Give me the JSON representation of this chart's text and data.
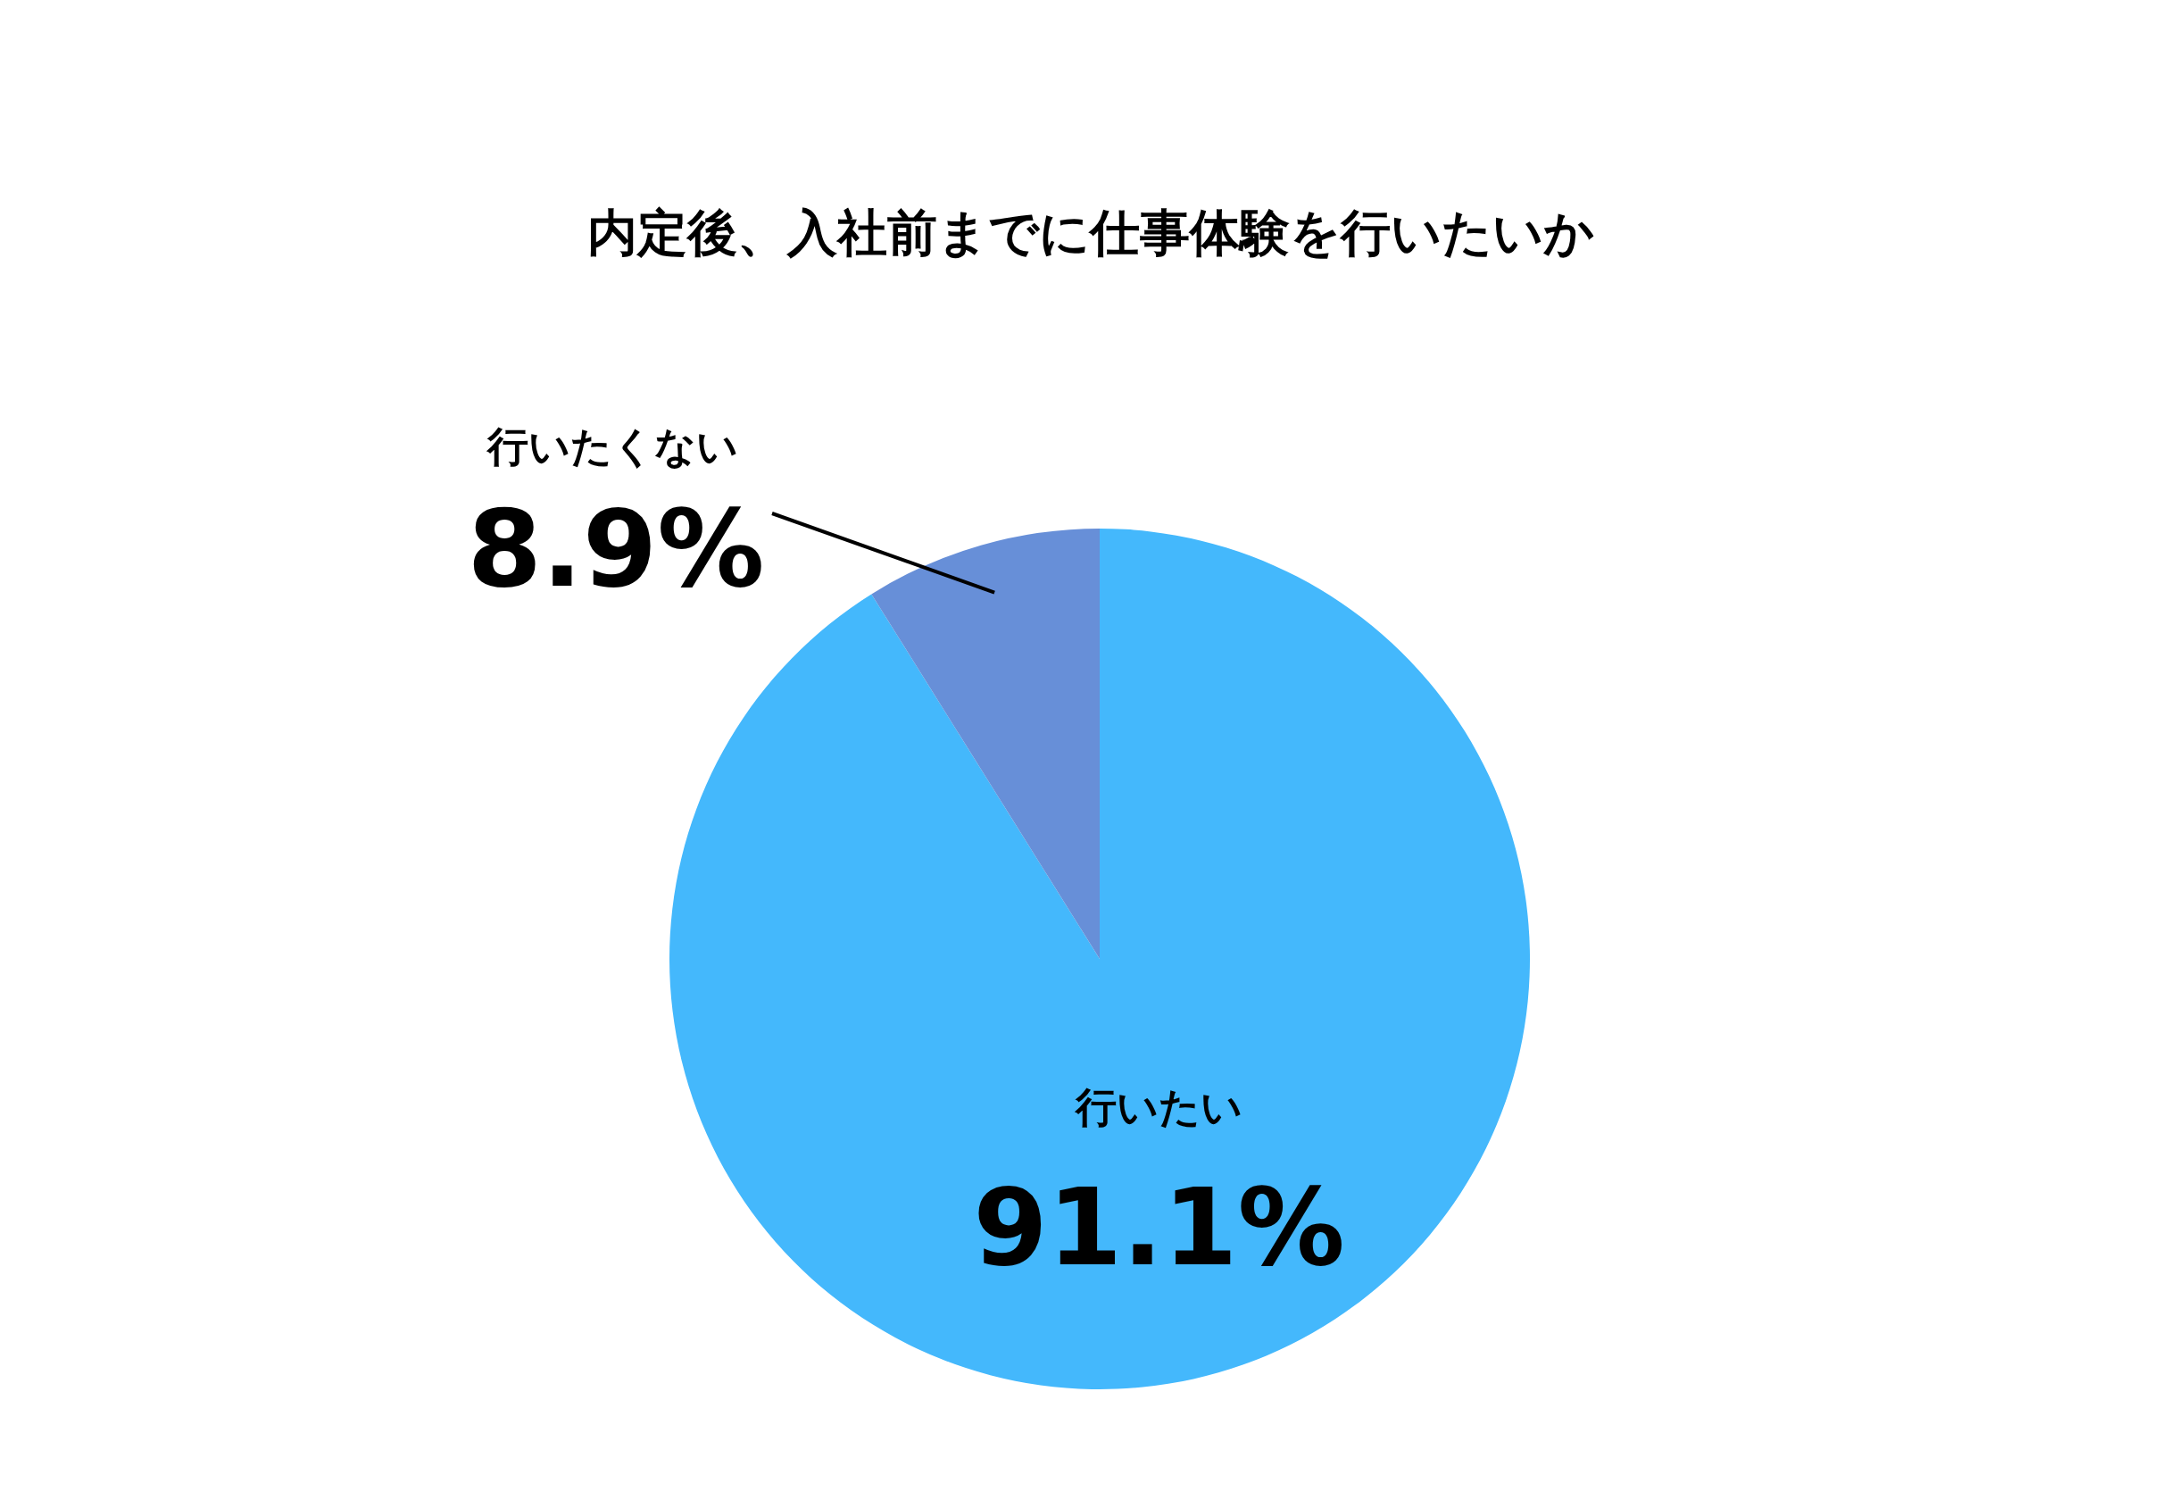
{
  "chart_data": {
    "type": "pie",
    "title": "内定後、入社前までに仕事体験を行いたいか",
    "categories": [
      "行いたい",
      "行いたくない"
    ],
    "values": [
      91.1,
      8.9
    ],
    "value_labels": [
      "91.1%",
      "8.9%"
    ],
    "colors": [
      "#44b8fc",
      "#678fd8"
    ],
    "legend": false
  }
}
